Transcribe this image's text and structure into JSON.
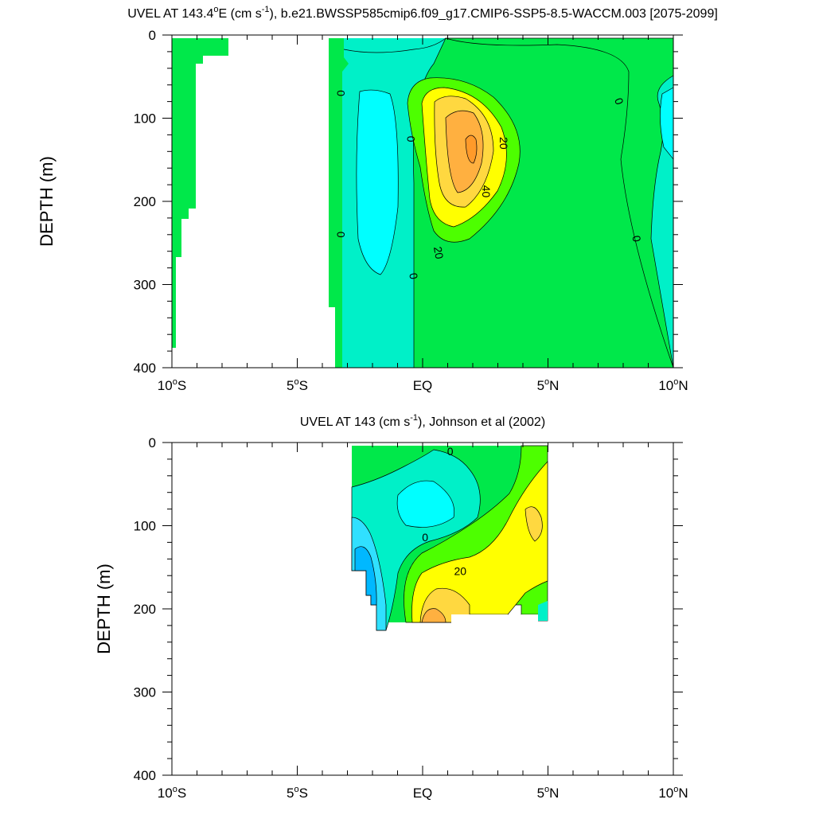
{
  "chart_data": [
    {
      "type": "contour",
      "title_pre": "UVEL AT 143.4",
      "title_sup1": "o",
      "title_mid": "E (cm s",
      "title_sup2": "-1",
      "title_post": "), b.e21.BWSSP585cmip6.f09_g17.CMIP6-SSP5-8.5-WACCM.003 [2075-2099]",
      "ylabel": "DEPTH (m)",
      "xlim": [
        -10,
        10
      ],
      "ylim": [
        400,
        0
      ],
      "x_ticks": [
        {
          "value": -10,
          "num": "10",
          "hemi": "S"
        },
        {
          "value": -5,
          "num": "5",
          "hemi": "S"
        },
        {
          "value": 0,
          "num": "EQ",
          "hemi": ""
        },
        {
          "value": 5,
          "num": "5",
          "hemi": "N"
        },
        {
          "value": 10,
          "num": "10",
          "hemi": "N"
        }
      ],
      "y_ticks": [
        {
          "value": 0,
          "label": "0"
        },
        {
          "value": 100,
          "label": "100"
        },
        {
          "value": 200,
          "label": "200"
        },
        {
          "value": 300,
          "label": "300"
        },
        {
          "value": 400,
          "label": "400"
        }
      ],
      "contour_labels": [
        {
          "text": "0",
          "x": -3.3,
          "depth": 70,
          "angle": 90
        },
        {
          "text": "0",
          "x": -0.5,
          "depth": 125,
          "angle": 90
        },
        {
          "text": "0",
          "x": 7.8,
          "depth": 80,
          "angle": 70
        },
        {
          "text": "0",
          "x": -3.3,
          "depth": 240,
          "angle": 90
        },
        {
          "text": "0",
          "x": -0.4,
          "depth": 290,
          "angle": 80
        },
        {
          "text": "0",
          "x": 8.5,
          "depth": 245,
          "angle": 80
        },
        {
          "text": "20",
          "x": 3.2,
          "depth": 130,
          "angle": 90
        },
        {
          "text": "40",
          "x": 2.5,
          "depth": 188,
          "angle": 90
        },
        {
          "text": "20",
          "x": 0.6,
          "depth": 262,
          "angle": 80
        }
      ]
    },
    {
      "type": "contour",
      "title_pre": "UVEL AT 143 (cm s",
      "title_sup": "-1",
      "title_post": "), Johnson et al (2002)",
      "ylabel": "DEPTH (m)",
      "xlim": [
        -10,
        10
      ],
      "ylim": [
        400,
        0
      ],
      "x_ticks": [
        {
          "value": -10,
          "num": "10",
          "hemi": "S"
        },
        {
          "value": -5,
          "num": "5",
          "hemi": "S"
        },
        {
          "value": 0,
          "num": "EQ",
          "hemi": ""
        },
        {
          "value": 5,
          "num": "5",
          "hemi": "N"
        },
        {
          "value": 10,
          "num": "10",
          "hemi": "N"
        }
      ],
      "y_ticks": [
        {
          "value": 0,
          "label": "0"
        },
        {
          "value": 100,
          "label": "100"
        },
        {
          "value": 200,
          "label": "200"
        },
        {
          "value": 300,
          "label": "300"
        },
        {
          "value": 400,
          "label": "400"
        }
      ],
      "contour_labels": [
        {
          "text": "0",
          "x": 1.1,
          "depth": 12,
          "angle": 0
        },
        {
          "text": "0",
          "x": 0.1,
          "depth": 115,
          "angle": 0
        },
        {
          "text": "20",
          "x": 1.5,
          "depth": 156,
          "angle": 0
        }
      ]
    }
  ]
}
